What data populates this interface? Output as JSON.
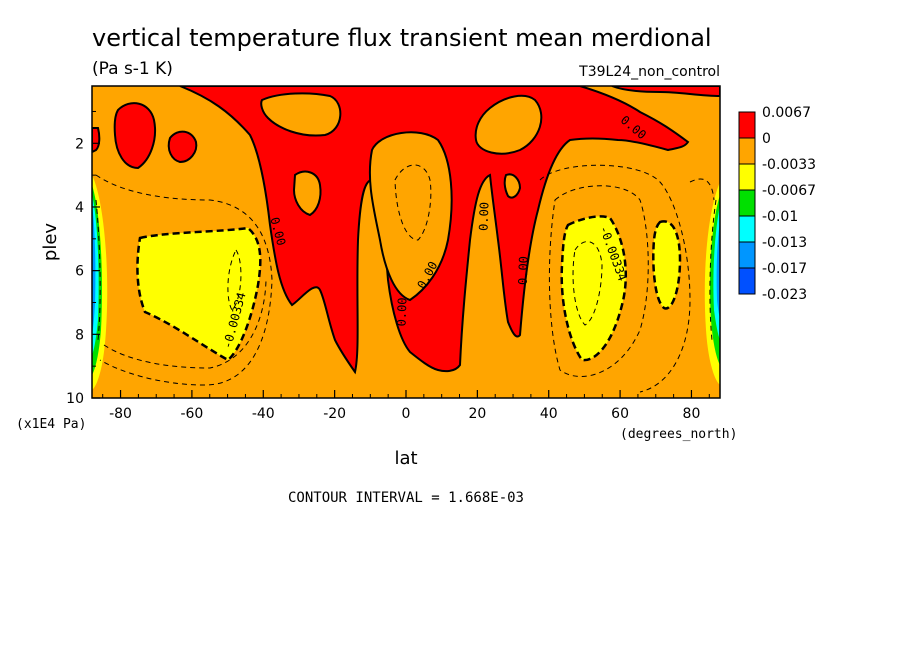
{
  "chart_data": {
    "type": "heatmap",
    "title": "vertical temperature flux transient mean merdional",
    "units": "(Pa s-1 K)",
    "experiment": "T39L24_non_control",
    "xlabel": "lat",
    "x_units": "(degrees_north)",
    "ylabel": "plev",
    "y_units": "(x1E4 Pa)",
    "xlim": [
      -88,
      88
    ],
    "ylim": [
      10,
      0.2
    ],
    "x_ticks": [
      -80,
      -60,
      -40,
      -20,
      0,
      20,
      40,
      60,
      80
    ],
    "x_tick_labels": [
      "-80",
      "-60",
      "-40",
      "-20",
      "0",
      "20",
      "40",
      "60",
      "80"
    ],
    "y_ticks": [
      2,
      4,
      6,
      8,
      10
    ],
    "y_tick_labels": [
      "2",
      "4",
      "6",
      "8",
      "10"
    ],
    "contour_interval": "CONTOUR INTERVAL = 1.668E-03",
    "contour_labels": [
      {
        "text": "0.00",
        "lat": 63,
        "plev": 1.6,
        "angle": 40
      },
      {
        "text": "0.00",
        "lat": -37,
        "plev": 4.8,
        "angle": 75
      },
      {
        "text": "0.00",
        "lat": 23,
        "plev": 4.3,
        "angle": -88
      },
      {
        "text": "0.00",
        "lat": 7,
        "plev": 6.2,
        "angle": -62
      },
      {
        "text": "0.00",
        "lat": 0,
        "plev": 7.3,
        "angle": -88
      },
      {
        "text": "0.00",
        "lat": 34,
        "plev": 6.0,
        "angle": -88
      },
      {
        "text": "-0.00334",
        "lat": -47,
        "plev": 7.6,
        "angle": -75
      },
      {
        "text": "-0.00334",
        "lat": 57,
        "plev": 5.5,
        "angle": 70
      }
    ],
    "legend": {
      "position": "right",
      "levels": [
        "0.0067",
        "0",
        "-0.0033",
        "-0.0067",
        "-0.01",
        "-0.013",
        "-0.017",
        "-0.023"
      ],
      "colors": [
        "#ff0000",
        "#ffa500",
        "#ffff00",
        "#00e000",
        "#00ffff",
        "#0096ff",
        "#0050ff"
      ]
    }
  }
}
